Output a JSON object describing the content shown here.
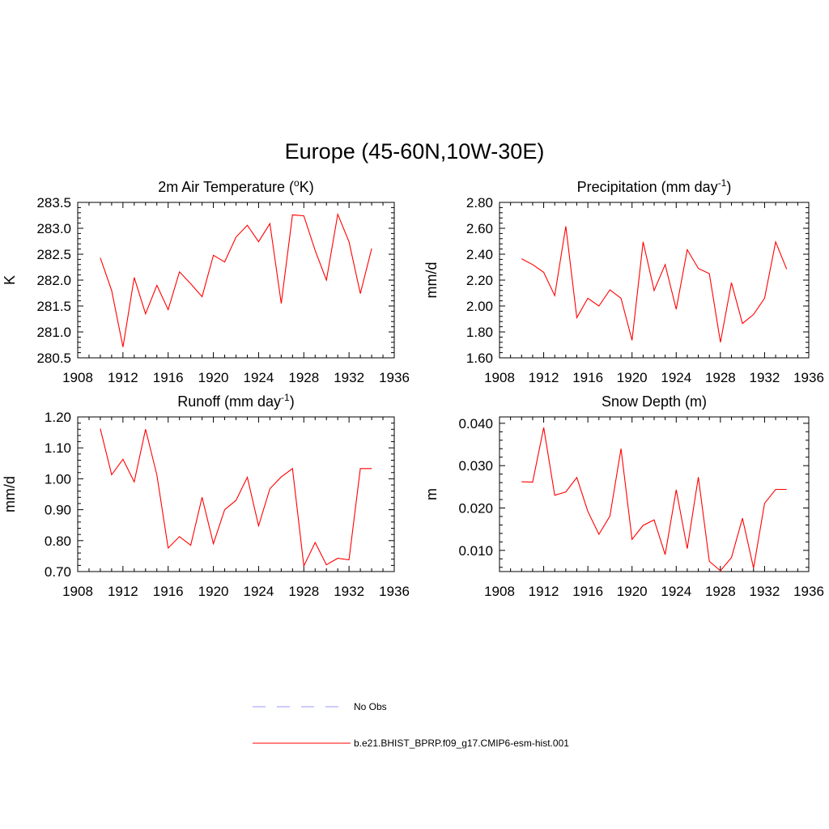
{
  "figure": {
    "title": "Europe (45-60N,10W-30E)"
  },
  "legend": {
    "entries": [
      {
        "label": "No Obs",
        "color": "#9999ff",
        "style": "dashed"
      },
      {
        "label": "b.e21.BHIST_BPRP.f09_g17.CMIP6-esm-hist.001",
        "color": "#ff0000",
        "style": "solid"
      }
    ]
  },
  "chart_data": [
    {
      "type": "line",
      "title": "2m Air Temperature (",
      "title_sup": "o",
      "title_after": "K)",
      "ylabel": "K",
      "xlim": [
        1908,
        1936
      ],
      "ylim": [
        280.5,
        283.5
      ],
      "xticks": [
        1908,
        1912,
        1916,
        1920,
        1924,
        1928,
        1932,
        1936
      ],
      "xticklabels": [
        "1908",
        "1912",
        "1916",
        "1920",
        "1924",
        "1928",
        "1932",
        "1936"
      ],
      "yticks": [
        280.5,
        281.0,
        281.5,
        282.0,
        282.5,
        283.0,
        283.5
      ],
      "yticklabels": [
        "280.5",
        "281.0",
        "281.5",
        "282.0",
        "282.5",
        "283.0",
        "283.5"
      ],
      "grid": false,
      "series": [
        {
          "name": "b.e21.BHIST_BPRP.f09_g17.CMIP6-esm-hist.001",
          "color": "#ff0000",
          "x": [
            1910,
            1911,
            1912,
            1913,
            1914,
            1915,
            1916,
            1917,
            1918,
            1919,
            1920,
            1921,
            1922,
            1923,
            1924,
            1925,
            1926,
            1927,
            1928,
            1929,
            1930,
            1931,
            1932,
            1933,
            1934
          ],
          "y": [
            282.43,
            281.8,
            280.71,
            282.05,
            281.35,
            281.9,
            281.43,
            282.16,
            281.93,
            281.68,
            282.48,
            282.35,
            282.83,
            283.06,
            282.74,
            283.09,
            281.55,
            283.26,
            283.24,
            282.57,
            282.0,
            283.27,
            282.74,
            281.74,
            282.61
          ]
        }
      ]
    },
    {
      "type": "line",
      "title": "Precipitation (mm day",
      "title_sup": "-1",
      "title_after": ")",
      "ylabel": "mm/d",
      "xlim": [
        1908,
        1936
      ],
      "ylim": [
        1.6,
        2.8
      ],
      "xticks": [
        1908,
        1912,
        1916,
        1920,
        1924,
        1928,
        1932,
        1936
      ],
      "xticklabels": [
        "1908",
        "1912",
        "1916",
        "1920",
        "1924",
        "1928",
        "1932",
        "1936"
      ],
      "yticks": [
        1.6,
        1.8,
        2.0,
        2.2,
        2.4,
        2.6,
        2.8
      ],
      "yticklabels": [
        "1.60",
        "1.80",
        "2.00",
        "2.20",
        "2.40",
        "2.60",
        "2.80"
      ],
      "grid": false,
      "series": [
        {
          "name": "b.e21.BHIST_BPRP.f09_g17.CMIP6-esm-hist.001",
          "color": "#ff0000",
          "x": [
            1910,
            1911,
            1912,
            1913,
            1914,
            1915,
            1916,
            1917,
            1918,
            1919,
            1920,
            1921,
            1922,
            1923,
            1924,
            1925,
            1926,
            1927,
            1928,
            1929,
            1930,
            1931,
            1932,
            1933,
            1934
          ],
          "y": [
            2.365,
            2.32,
            2.26,
            2.08,
            2.615,
            1.91,
            2.06,
            2.0,
            2.125,
            2.06,
            1.735,
            2.495,
            2.12,
            2.32,
            1.975,
            2.435,
            2.29,
            2.25,
            1.72,
            2.18,
            1.865,
            1.935,
            2.06,
            2.495,
            2.285
          ]
        }
      ]
    },
    {
      "type": "line",
      "title": "Runoff (mm day",
      "title_sup": "-1",
      "title_after": ")",
      "ylabel": "mm/d",
      "xlim": [
        1908,
        1936
      ],
      "ylim": [
        0.7,
        1.2
      ],
      "xticks": [
        1908,
        1912,
        1916,
        1920,
        1924,
        1928,
        1932,
        1936
      ],
      "xticklabels": [
        "1908",
        "1912",
        "1916",
        "1920",
        "1924",
        "1928",
        "1932",
        "1936"
      ],
      "yticks": [
        0.7,
        0.8,
        0.9,
        1.0,
        1.1,
        1.2
      ],
      "yticklabels": [
        "0.70",
        "0.80",
        "0.90",
        "1.00",
        "1.10",
        "1.20"
      ],
      "grid": false,
      "series": [
        {
          "name": "b.e21.BHIST_BPRP.f09_g17.CMIP6-esm-hist.001",
          "color": "#ff0000",
          "x": [
            1910,
            1911,
            1912,
            1913,
            1914,
            1915,
            1916,
            1917,
            1918,
            1919,
            1920,
            1921,
            1922,
            1923,
            1924,
            1925,
            1926,
            1927,
            1928,
            1929,
            1930,
            1931,
            1932,
            1933,
            1934
          ],
          "y": [
            1.162,
            1.013,
            1.063,
            0.99,
            1.16,
            1.012,
            0.776,
            0.813,
            0.785,
            0.94,
            0.79,
            0.9,
            0.93,
            1.005,
            0.848,
            0.968,
            1.006,
            1.033,
            0.718,
            0.794,
            0.722,
            0.743,
            0.738,
            1.033,
            1.033
          ]
        }
      ]
    },
    {
      "type": "line",
      "title": "Snow Depth (m)",
      "title_sup": "",
      "title_after": "",
      "ylabel": "m",
      "xlim": [
        1908,
        1936
      ],
      "ylim": [
        0.005,
        0.0415
      ],
      "xticks": [
        1908,
        1912,
        1916,
        1920,
        1924,
        1928,
        1932,
        1936
      ],
      "xticklabels": [
        "1908",
        "1912",
        "1916",
        "1920",
        "1924",
        "1928",
        "1932",
        "1936"
      ],
      "yticks": [
        0.01,
        0.02,
        0.03,
        0.04
      ],
      "yticklabels": [
        "0.010",
        "0.020",
        "0.030",
        "0.040"
      ],
      "grid": false,
      "series": [
        {
          "name": "b.e21.BHIST_BPRP.f09_g17.CMIP6-esm-hist.001",
          "color": "#ff0000",
          "x": [
            1910,
            1911,
            1912,
            1913,
            1914,
            1915,
            1916,
            1917,
            1918,
            1919,
            1920,
            1921,
            1922,
            1923,
            1924,
            1925,
            1926,
            1927,
            1928,
            1929,
            1930,
            1931,
            1932,
            1933,
            1934
          ],
          "y": [
            0.0262,
            0.0261,
            0.039,
            0.023,
            0.0238,
            0.0272,
            0.0192,
            0.0138,
            0.0181,
            0.034,
            0.0126,
            0.0159,
            0.0172,
            0.009,
            0.0243,
            0.0104,
            0.0273,
            0.0074,
            0.0052,
            0.0083,
            0.0176,
            0.0058,
            0.0211,
            0.0244,
            0.0244
          ]
        }
      ]
    }
  ]
}
